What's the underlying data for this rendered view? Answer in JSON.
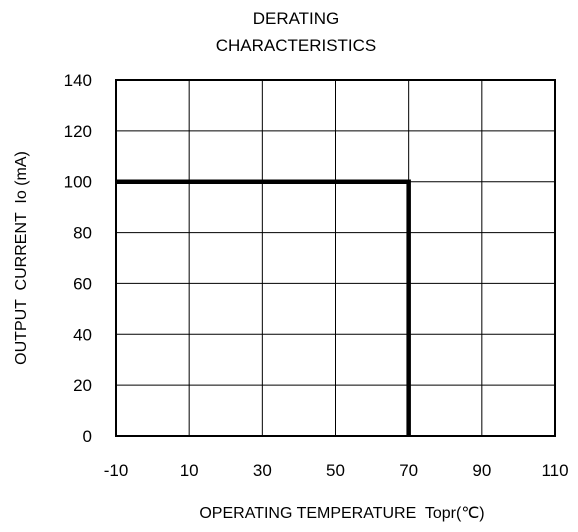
{
  "chart_data": {
    "type": "line",
    "title_lines": [
      "DERATING",
      "CHARACTERISTICS"
    ],
    "xlabel": "OPERATING TEMPERATURE  Topr(℃)",
    "ylabel": "OUTPUT  CURRENT  Io (mA)",
    "xlim": [
      -10,
      110
    ],
    "ylim": [
      0,
      140
    ],
    "x_ticks": [
      -10,
      10,
      30,
      50,
      70,
      90,
      110
    ],
    "y_ticks": [
      0,
      20,
      40,
      60,
      80,
      100,
      120,
      140
    ],
    "x_tick_labels": [
      "-10",
      "10",
      "30",
      "50",
      "70",
      "90",
      "110"
    ],
    "y_tick_labels": [
      "0",
      "20",
      "40",
      "60",
      "80",
      "100",
      "120",
      "140"
    ],
    "grid": true,
    "series": [
      {
        "x": [
          -10,
          70,
          70
        ],
        "y": [
          100,
          100,
          0
        ]
      }
    ]
  }
}
